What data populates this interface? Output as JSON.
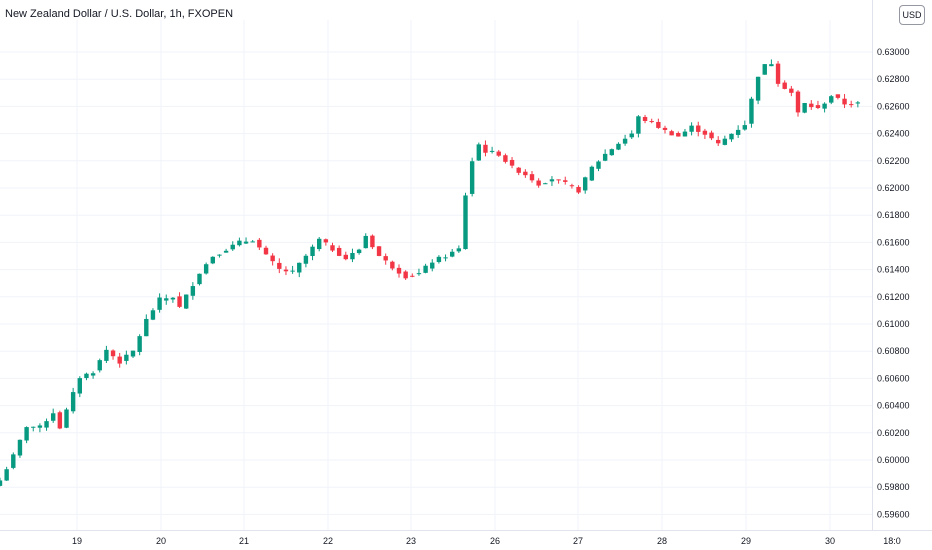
{
  "header": {
    "title": "New Zealand Dollar / U.S. Dollar, 1h, FXOPEN",
    "currency_label": "USD"
  },
  "colors": {
    "up": "#089981",
    "down": "#f23645",
    "grid": "#f0f3fa",
    "text": "#131722",
    "axis_line": "#e0e3eb"
  },
  "chart_data": {
    "type": "candlestick",
    "title": "New Zealand Dollar / U.S. Dollar, 1h, FXOPEN",
    "xlabel": "",
    "ylabel": "",
    "ylim": [
      0.5952,
      0.6305
    ],
    "grid": true,
    "x_ticks": [
      "19",
      "20",
      "21",
      "22",
      "23",
      "26",
      "27",
      "28",
      "29",
      "30",
      "18:0"
    ],
    "y_ticks": [
      "0.63000",
      "0.62800",
      "0.62600",
      "0.62400",
      "0.62200",
      "0.62000",
      "0.61800",
      "0.61600",
      "0.61400",
      "0.61200",
      "0.61000",
      "0.60800",
      "0.60600",
      "0.60400",
      "0.60200",
      "0.60000",
      "0.59800",
      "0.59600"
    ],
    "path": [
      [
        0,
        0.5985
      ],
      [
        2,
        0.6003
      ],
      [
        4,
        0.6025
      ],
      [
        6,
        0.6024
      ],
      [
        8,
        0.6035
      ],
      [
        9,
        0.6024
      ],
      [
        12,
        0.6061
      ],
      [
        14,
        0.6065
      ],
      [
        16,
        0.6081
      ],
      [
        18,
        0.6072
      ],
      [
        20,
        0.608
      ],
      [
        22,
        0.6103
      ],
      [
        24,
        0.6118
      ],
      [
        26,
        0.612
      ],
      [
        27,
        0.6112
      ],
      [
        30,
        0.6138
      ],
      [
        32,
        0.615
      ],
      [
        34,
        0.6155
      ],
      [
        36,
        0.616
      ],
      [
        38,
        0.6162
      ],
      [
        40,
        0.615
      ],
      [
        42,
        0.614
      ],
      [
        44,
        0.6138
      ],
      [
        46,
        0.615
      ],
      [
        48,
        0.6162
      ],
      [
        50,
        0.6155
      ],
      [
        52,
        0.6148
      ],
      [
        54,
        0.6155
      ],
      [
        55,
        0.6165
      ],
      [
        57,
        0.615
      ],
      [
        59,
        0.6142
      ],
      [
        61,
        0.6135
      ],
      [
        63,
        0.6137
      ],
      [
        65,
        0.6146
      ],
      [
        67,
        0.615
      ],
      [
        69,
        0.6155
      ],
      [
        70,
        0.6195
      ],
      [
        71,
        0.622
      ],
      [
        72,
        0.6232
      ],
      [
        73,
        0.6227
      ],
      [
        75,
        0.6225
      ],
      [
        77,
        0.6215
      ],
      [
        79,
        0.621
      ],
      [
        81,
        0.6203
      ],
      [
        83,
        0.6207
      ],
      [
        85,
        0.6203
      ],
      [
        87,
        0.6198
      ],
      [
        89,
        0.6215
      ],
      [
        91,
        0.6225
      ],
      [
        93,
        0.6233
      ],
      [
        95,
        0.624
      ],
      [
        96,
        0.6252
      ],
      [
        98,
        0.6248
      ],
      [
        100,
        0.6242
      ],
      [
        102,
        0.6238
      ],
      [
        104,
        0.6245
      ],
      [
        106,
        0.624
      ],
      [
        108,
        0.6232
      ],
      [
        110,
        0.624
      ],
      [
        112,
        0.6247
      ],
      [
        114,
        0.6283
      ],
      [
        115,
        0.629
      ],
      [
        116,
        0.6292
      ],
      [
        117,
        0.6278
      ],
      [
        119,
        0.627
      ],
      [
        120,
        0.6255
      ],
      [
        121,
        0.6262
      ],
      [
        123,
        0.6258
      ],
      [
        125,
        0.6268
      ],
      [
        127,
        0.6262
      ],
      [
        129,
        0.6262
      ]
    ]
  }
}
